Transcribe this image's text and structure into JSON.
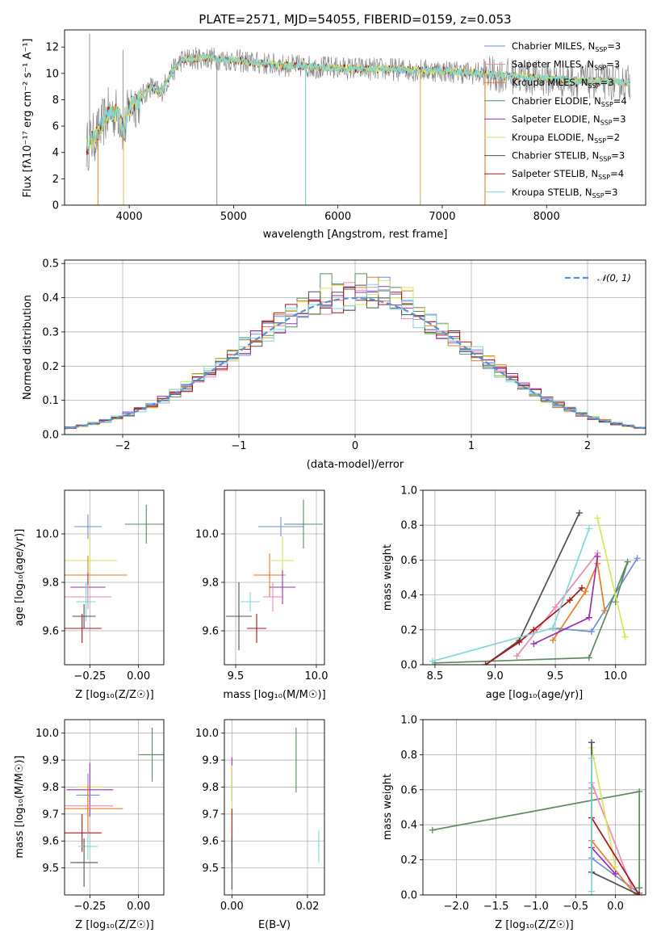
{
  "colors": {
    "Chabrier MILES": "#6f8fdc",
    "Salpeter MILES": "#e88ab5",
    "Kroupa MILES": "#e87d24",
    "Chabrier ELODIE": "#5b8a62",
    "Salpeter ELODIE": "#9a2fb5",
    "Kroupa ELODIE": "#d6e65a",
    "Chabrier STELIB": "#505050",
    "Salpeter STELIB": "#a51818",
    "Kroupa STELIB": "#7fd7dc"
  },
  "chart_data": [
    {
      "type": "line",
      "title": "PLATE=2571, MJD=54055, FIBERID=0159, z=0.053",
      "xlabel": "wavelength [Angstrom, rest frame]",
      "ylabel": "Flux [fλ10⁻¹⁷ erg cm⁻² s⁻¹ A⁻¹]",
      "xlim": [
        3380,
        8950
      ],
      "ylim": [
        0,
        13.3
      ],
      "xticks": [
        4000,
        5000,
        6000,
        7000,
        8000
      ],
      "yticks": [
        0,
        2,
        4,
        6,
        8,
        10,
        12
      ],
      "continuum": {
        "x": [
          3600,
          3700,
          3800,
          3900,
          3950,
          4000,
          4100,
          4200,
          4300,
          4400,
          4500,
          4700,
          5000,
          5200,
          5500,
          6000,
          6500,
          7000,
          7500,
          8000,
          8500,
          8800
        ],
        "y": [
          4.5,
          5.5,
          7.0,
          7.0,
          5.5,
          7.5,
          8.0,
          9.0,
          8.5,
          10.0,
          11.0,
          11.2,
          11.0,
          10.8,
          10.6,
          10.4,
          10.3,
          10.2,
          9.9,
          9.6,
          9.4,
          9.3
        ]
      },
      "legend": [
        {
          "label": "Chabrier MILES, N",
          "sub": "SSP",
          "tail": "=3"
        },
        {
          "label": "Salpeter MILES, N",
          "sub": "SSP",
          "tail": "=3"
        },
        {
          "label": "Kroupa MILES, N",
          "sub": "SSP",
          "tail": "=3"
        },
        {
          "label": "Chabrier ELODIE, N",
          "sub": "SSP",
          "tail": "=4"
        },
        {
          "label": "Salpeter ELODIE, N",
          "sub": "SSP",
          "tail": "=3"
        },
        {
          "label": "Kroupa ELODIE, N",
          "sub": "SSP",
          "tail": "=2"
        },
        {
          "label": "Chabrier STELIB, N",
          "sub": "SSP",
          "tail": "=3"
        },
        {
          "label": "Salpeter STELIB, N",
          "sub": "SSP",
          "tail": "=4"
        },
        {
          "label": "Kroupa STELIB, N",
          "sub": "SSP",
          "tail": "=3"
        }
      ]
    },
    {
      "type": "area",
      "xlabel": "(data-model)/error",
      "ylabel": "Normed distribution",
      "xlim": [
        -2.5,
        2.5
      ],
      "ylim": [
        0,
        0.51
      ],
      "xticks": [
        -2,
        -1,
        0,
        1,
        2
      ],
      "xtick_labels": [
        "−2",
        "−1",
        "0",
        "1",
        "2"
      ],
      "yticks": [
        0,
        0.1,
        0.2,
        0.3,
        0.4,
        0.5
      ],
      "ytick_labels": [
        "0.0",
        "0.1",
        "0.2",
        "0.3",
        "0.4",
        "0.5"
      ],
      "legend": "𝒩(0, 1)",
      "bin_width": 0.1,
      "histograms": {
        "Chabrier MILES": [
          0.4,
          0.42,
          0.46,
          0.41,
          0.39,
          0.36
        ],
        "Chabrier ELODIE": [
          0.47,
          0.4,
          0.42,
          0.43,
          0.38,
          0.36
        ],
        "Kroupa MILES": [
          0.43,
          0.46,
          0.39,
          0.4,
          0.42,
          0.37
        ],
        "Kroupa ELODIE": [
          0.38,
          0.41,
          0.45,
          0.4,
          0.43,
          0.37
        ]
      }
    },
    {
      "type": "scatter",
      "xlabel": "Z [log₁₀(Z/Z☉)]",
      "ylabel": "age  [log₁₀(age/yr)]",
      "xlim": [
        -0.38,
        0.13
      ],
      "ylim": [
        9.46,
        10.18
      ],
      "xticks": [
        -0.25,
        0.0
      ],
      "xtick_labels": [
        "−0.25",
        "0.00"
      ],
      "yticks": [
        9.6,
        9.8,
        10.0
      ],
      "ytick_labels": [
        "9.6",
        "9.8",
        "10.0"
      ],
      "points": [
        {
          "series": "Chabrier MILES",
          "x": -0.26,
          "y": 10.03,
          "xe": 0.07,
          "ye": 0.05
        },
        {
          "series": "Chabrier ELODIE",
          "x": 0.04,
          "y": 10.04,
          "xe": 0.11,
          "ye": 0.08
        },
        {
          "series": "Kroupa ELODIE",
          "x": -0.25,
          "y": 9.89,
          "xe": 0.14,
          "ye": 0.11
        },
        {
          "series": "Kroupa MILES",
          "x": -0.26,
          "y": 9.83,
          "xe": 0.2,
          "ye": 0.08
        },
        {
          "series": "Salpeter ELODIE",
          "x": -0.26,
          "y": 9.78,
          "xe": 0.09,
          "ye": 0.06
        },
        {
          "series": "Salpeter MILES",
          "x": -0.26,
          "y": 9.74,
          "xe": 0.12,
          "ye": 0.05
        },
        {
          "series": "Kroupa STELIB",
          "x": -0.27,
          "y": 9.72,
          "xe": 0.05,
          "ye": 0.08
        },
        {
          "series": "Chabrier STELIB",
          "x": -0.28,
          "y": 9.66,
          "xe": 0.06,
          "ye": 0.05
        },
        {
          "series": "Salpeter STELIB",
          "x": -0.29,
          "y": 9.61,
          "xe": 0.1,
          "ye": 0.06
        }
      ]
    },
    {
      "type": "scatter",
      "xlabel": "mass [log₁₀(M/M☉)]",
      "ylabel": "",
      "xlim": [
        9.43,
        10.05
      ],
      "ylim": [
        9.46,
        10.18
      ],
      "xticks": [
        9.5,
        10.0
      ],
      "xtick_labels": [
        "9.5",
        "10.0"
      ],
      "yticks": [
        9.6,
        9.8,
        10.0
      ],
      "ytick_labels": [
        "9.6",
        "9.8",
        "10.0"
      ],
      "points": [
        {
          "series": "Chabrier MILES",
          "x": 9.78,
          "y": 10.03,
          "xe": 0.14,
          "ye": 0.04
        },
        {
          "series": "Chabrier ELODIE",
          "x": 9.92,
          "y": 10.04,
          "xe": 0.12,
          "ye": 0.1
        },
        {
          "series": "Kroupa ELODIE",
          "x": 9.79,
          "y": 9.89,
          "xe": 0.07,
          "ye": 0.1
        },
        {
          "series": "Kroupa MILES",
          "x": 9.71,
          "y": 9.83,
          "xe": 0.1,
          "ye": 0.09
        },
        {
          "series": "Salpeter ELODIE",
          "x": 9.79,
          "y": 9.78,
          "xe": 0.08,
          "ye": 0.07
        },
        {
          "series": "Salpeter MILES",
          "x": 9.73,
          "y": 9.74,
          "xe": 0.06,
          "ye": 0.06
        },
        {
          "series": "Kroupa STELIB",
          "x": 9.59,
          "y": 9.72,
          "xe": 0.06,
          "ye": 0.04
        },
        {
          "series": "Chabrier STELIB",
          "x": 9.52,
          "y": 9.66,
          "xe": 0.08,
          "ye": 0.14
        },
        {
          "series": "Salpeter STELIB",
          "x": 9.63,
          "y": 9.61,
          "xe": 0.06,
          "ye": 0.06
        }
      ]
    },
    {
      "type": "line",
      "xlabel": "age  [log₁₀(age/yr)]",
      "ylabel": "mass weight",
      "xlim": [
        8.4,
        10.25
      ],
      "ylim": [
        0,
        1.0
      ],
      "xticks": [
        8.5,
        9.0,
        9.5,
        10.0
      ],
      "xtick_labels": [
        "8.5",
        "9.0",
        "9.5",
        "10.0"
      ],
      "yticks": [
        0,
        0.2,
        0.4,
        0.6,
        0.8,
        1.0
      ],
      "ytick_labels": [
        "0.0",
        "0.2",
        "0.4",
        "0.6",
        "0.8",
        "1.0"
      ],
      "series": [
        {
          "name": "Chabrier MILES",
          "x": [
            9.48,
            9.8,
            10.18
          ],
          "y": [
            0.21,
            0.19,
            0.61
          ]
        },
        {
          "name": "Salpeter MILES",
          "x": [
            9.18,
            9.5,
            9.85
          ],
          "y": [
            0.05,
            0.33,
            0.64
          ]
        },
        {
          "name": "Kroupa MILES",
          "x": [
            9.48,
            9.75,
            9.85,
            9.91
          ],
          "y": [
            0.14,
            0.42,
            0.58,
            0.31
          ]
        },
        {
          "name": "Chabrier ELODIE",
          "x": [
            8.5,
            9.78,
            10.1,
            10.0
          ],
          "y": [
            0.01,
            0.04,
            0.59,
            0.36
          ]
        },
        {
          "name": "Salpeter ELODIE",
          "x": [
            9.32,
            9.78,
            9.85
          ],
          "y": [
            0.12,
            0.27,
            0.62
          ]
        },
        {
          "name": "Kroupa ELODIE",
          "x": [
            9.85,
            10.08
          ],
          "y": [
            0.84,
            0.16
          ]
        },
        {
          "name": "Chabrier STELIB",
          "x": [
            8.92,
            9.2,
            9.7
          ],
          "y": [
            0.0,
            0.14,
            0.87
          ]
        },
        {
          "name": "Salpeter STELIB",
          "x": [
            8.92,
            9.2,
            9.32,
            9.62,
            9.72
          ],
          "y": [
            0.0,
            0.13,
            0.2,
            0.37,
            0.44
          ]
        },
        {
          "name": "Kroupa STELIB",
          "x": [
            8.48,
            9.48,
            9.78
          ],
          "y": [
            0.02,
            0.21,
            0.78
          ]
        }
      ]
    },
    {
      "type": "scatter",
      "xlabel": "Z [log₁₀(Z/Z☉)]",
      "ylabel": "mass [log₁₀(M/M☉)]",
      "xlim": [
        -0.38,
        0.13
      ],
      "ylim": [
        9.4,
        10.05
      ],
      "xticks": [
        -0.25,
        0.0
      ],
      "xtick_labels": [
        "−0.25",
        "0.00"
      ],
      "yticks": [
        9.5,
        9.6,
        9.7,
        9.8,
        9.9,
        10.0
      ],
      "ytick_labels": [
        "9.5",
        "9.6",
        "9.7",
        "9.8",
        "9.9",
        "10.0"
      ],
      "points": [
        {
          "series": "Chabrier ELODIE",
          "x": 0.07,
          "y": 9.92,
          "xe": 0.07,
          "ye": 0.1
        },
        {
          "series": "Kroupa ELODIE",
          "x": -0.25,
          "y": 9.8,
          "xe": 0.07,
          "ye": 0.06
        },
        {
          "series": "Salpeter ELODIE",
          "x": -0.25,
          "y": 9.79,
          "xe": 0.12,
          "ye": 0.1
        },
        {
          "series": "Chabrier MILES",
          "x": -0.26,
          "y": 9.77,
          "xe": 0.06,
          "ye": 0.08
        },
        {
          "series": "Salpeter MILES",
          "x": -0.26,
          "y": 9.73,
          "xe": 0.13,
          "ye": 0.07
        },
        {
          "series": "Kroupa MILES",
          "x": -0.26,
          "y": 9.72,
          "xe": 0.18,
          "ye": 0.09
        },
        {
          "series": "Salpeter STELIB",
          "x": -0.29,
          "y": 9.63,
          "xe": 0.1,
          "ye": 0.07
        },
        {
          "series": "Kroupa STELIB",
          "x": -0.26,
          "y": 9.58,
          "xe": 0.05,
          "ye": 0.05
        },
        {
          "series": "Chabrier STELIB",
          "x": -0.28,
          "y": 9.52,
          "xe": 0.07,
          "ye": 0.09
        }
      ]
    },
    {
      "type": "scatter",
      "xlabel": "E(B-V)",
      "ylabel": "",
      "xlim": [
        -0.002,
        0.0245
      ],
      "ylim": [
        9.4,
        10.05
      ],
      "xticks": [
        0.0,
        0.02
      ],
      "xtick_labels": [
        "0.00",
        "0.02"
      ],
      "yticks": [
        9.5,
        9.6,
        9.7,
        9.8,
        9.9,
        10.0
      ],
      "ytick_labels": [
        "9.5",
        "9.6",
        "9.7",
        "9.8",
        "9.9",
        "10.0"
      ],
      "points": [
        {
          "series": "Chabrier ELODIE",
          "x": 0.017,
          "y": 9.9,
          "xe": 0,
          "ye": 0.12
        },
        {
          "series": "Salpeter ELODIE",
          "x": 0.0,
          "y": 9.83,
          "xe": 0,
          "ye": 0.08
        },
        {
          "series": "Kroupa ELODIE",
          "x": 0.0,
          "y": 9.78,
          "xe": 0,
          "ye": 0.1
        },
        {
          "series": "Salpeter STELIB",
          "x": 0.0,
          "y": 9.62,
          "xe": 0,
          "ye": 0.1
        },
        {
          "series": "Chabrier STELIB",
          "x": 0.0,
          "y": 9.52,
          "xe": 0,
          "ye": 0.1
        },
        {
          "series": "Kroupa STELIB",
          "x": 0.023,
          "y": 9.58,
          "xe": 0,
          "ye": 0.06
        }
      ]
    },
    {
      "type": "line",
      "xlabel": "Z [log₁₀(Z/Z☉)]",
      "ylabel": "mass weight",
      "xlim": [
        -2.42,
        0.38
      ],
      "ylim": [
        0,
        1.0
      ],
      "xticks": [
        -2.0,
        -1.5,
        -1.0,
        -0.5,
        0.0
      ],
      "xtick_labels": [
        "−2.0",
        "−1.5",
        "−1.0",
        "−0.5",
        "0.0"
      ],
      "yticks": [
        0,
        0.2,
        0.4,
        0.6,
        0.8,
        1.0
      ],
      "ytick_labels": [
        "0.0",
        "0.2",
        "0.4",
        "0.6",
        "0.8",
        "1.0"
      ],
      "series": [
        {
          "name": "Chabrier ELODIE",
          "x": [
            -2.3,
            0.3,
            0.3,
            0.3
          ],
          "y": [
            0.37,
            0.59,
            0.04,
            0.01
          ]
        },
        {
          "name": "Chabrier MILES",
          "x": [
            -0.3,
            -0.3,
            0.3
          ],
          "y": [
            0.61,
            0.21,
            0.01
          ]
        },
        {
          "name": "Salpeter MILES",
          "x": [
            -0.3,
            0.2
          ],
          "y": [
            0.64,
            0.05
          ]
        },
        {
          "name": "Kroupa MILES",
          "x": [
            -0.3,
            -0.3,
            0.25
          ],
          "y": [
            0.58,
            0.31,
            0.0
          ]
        },
        {
          "name": "Salpeter ELODIE",
          "x": [
            -0.3,
            0.0
          ],
          "y": [
            0.27,
            0.12
          ]
        },
        {
          "name": "Kroupa ELODIE",
          "x": [
            -0.3,
            0.0
          ],
          "y": [
            0.84,
            0.16
          ]
        },
        {
          "name": "Chabrier STELIB",
          "x": [
            -0.3,
            -0.3,
            0.3
          ],
          "y": [
            0.87,
            0.13,
            0.0
          ]
        },
        {
          "name": "Salpeter STELIB",
          "x": [
            -0.3,
            0.3
          ],
          "y": [
            0.44,
            0.0
          ]
        },
        {
          "name": "Kroupa STELIB",
          "x": [
            -0.3,
            -0.3
          ],
          "y": [
            0.78,
            0.02
          ]
        }
      ]
    }
  ]
}
